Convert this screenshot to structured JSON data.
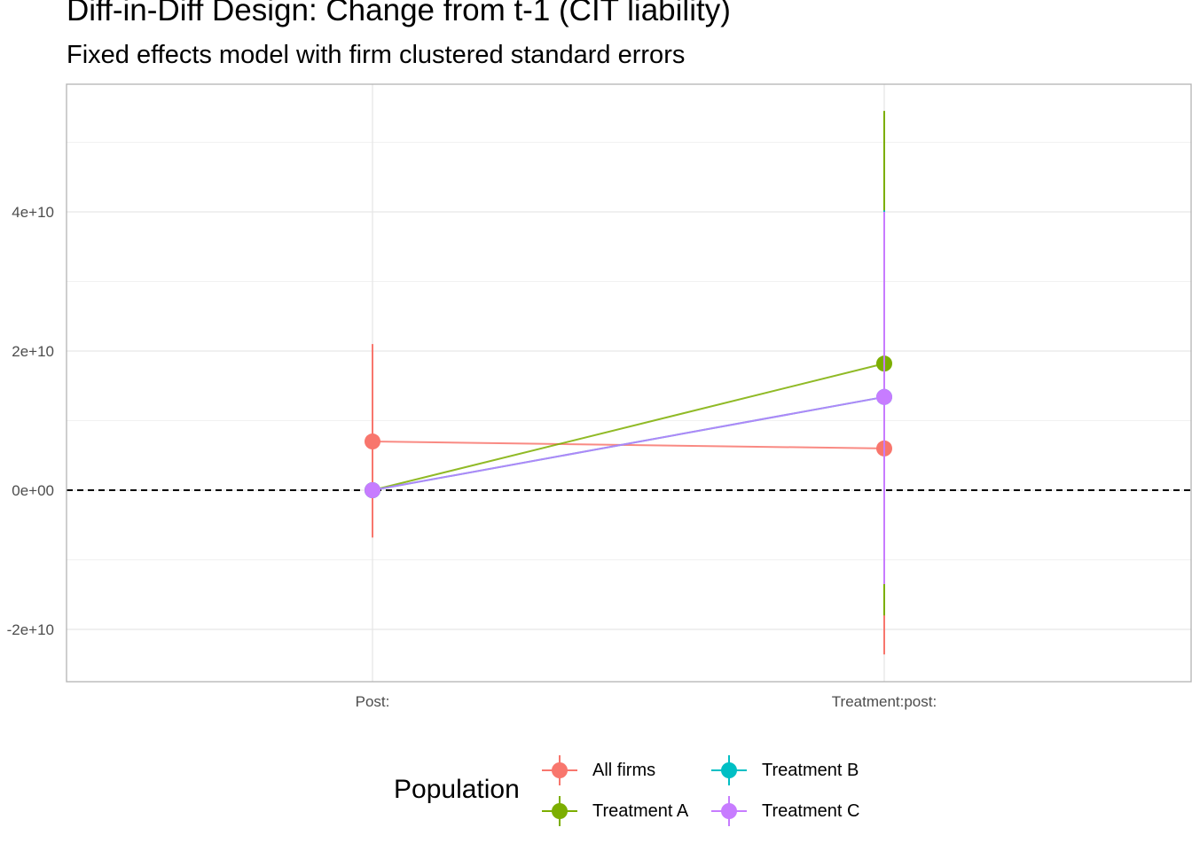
{
  "chart_data": {
    "type": "scatter",
    "title": "Diff-in-Diff Design: Change from t-1 (CIT liability)",
    "subtitle": "Fixed effects model with firm clustered standard errors",
    "xlabel": "",
    "ylabel": "",
    "categories": [
      "Post:",
      "Treatment:post:"
    ],
    "ylim": [
      -27000000000.0,
      59000000000.0
    ],
    "yticks": [
      -20000000000.0,
      0,
      20000000000.0,
      40000000000.0
    ],
    "ytick_labels": [
      "-2e+10",
      "0e+00",
      "2e+10",
      "4e+10"
    ],
    "reference_line": {
      "y": 0,
      "style": "dashed",
      "color": "#000000"
    },
    "grid": true,
    "legend_title": "Population",
    "legend_position": "bottom",
    "series": [
      {
        "name": "All firms",
        "color": "#F8766D",
        "points": [
          {
            "x": "Post:",
            "y": 7000000000.0,
            "lower": -6800000000.0,
            "upper": 21000000000.0
          },
          {
            "x": "Treatment:post:",
            "y": 6000000000.0,
            "lower": -23600000000.0,
            "upper": 35500000000.0
          }
        ]
      },
      {
        "name": "Treatment A",
        "color": "#7CAE00",
        "points": [
          {
            "x": "Post:",
            "y": 0,
            "lower": 0,
            "upper": 0
          },
          {
            "x": "Treatment:post:",
            "y": 18200000000.0,
            "lower": -18000000000.0,
            "upper": 54500000000.0
          }
        ]
      },
      {
        "name": "Treatment B",
        "color": "#00BFC4",
        "points": [
          {
            "x": "Post:",
            "y": 0,
            "lower": 0,
            "upper": 0
          },
          {
            "x": "Treatment:post:",
            "y": 13400000000.0,
            "lower": -13500000000.0,
            "upper": 40200000000.0
          }
        ]
      },
      {
        "name": "Treatment C",
        "color": "#C77CFF",
        "points": [
          {
            "x": "Post:",
            "y": 0,
            "lower": 0,
            "upper": 0
          },
          {
            "x": "Treatment:post:",
            "y": 13400000000.0,
            "lower": -13500000000.0,
            "upper": 40000000000.0
          }
        ]
      }
    ]
  }
}
